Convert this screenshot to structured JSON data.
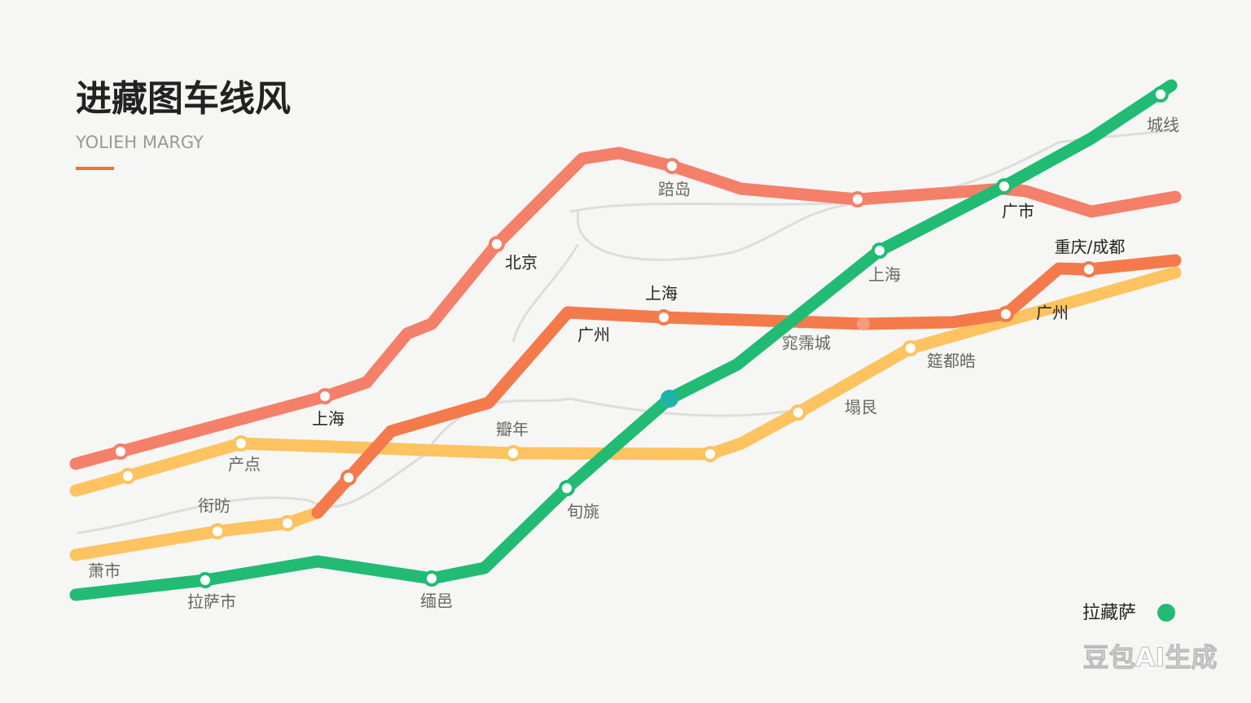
{
  "header": {
    "title": "进藏图车线风",
    "subtitle": "YOLIEH MARGY"
  },
  "map": {
    "labels": [
      "上海",
      "北京",
      "踣岛",
      "广市",
      "广州",
      "上海",
      "广州",
      "重庆/成都",
      "产点",
      "瓣年",
      "塌艮",
      "筵都皓",
      "衔昉",
      "萧市",
      "拉萨市",
      "缅邑",
      "旬旐",
      "上海",
      "城线",
      "窕霈城"
    ]
  },
  "legend": {
    "label": "拉藏萨"
  },
  "watermark": "豆包AI生成"
}
